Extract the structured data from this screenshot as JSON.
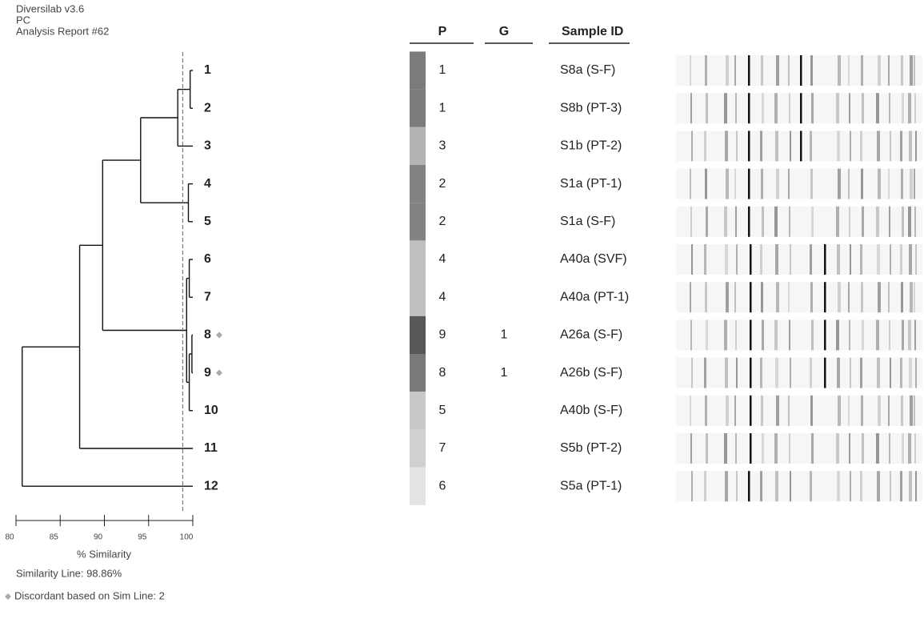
{
  "chart_data": {
    "type": "dendrogram",
    "header": [
      "Diversilab v3.6",
      "PC",
      "Analysis Report #62"
    ],
    "xlabel": "% Similarity",
    "xlim": [
      80,
      100
    ],
    "xticks": [
      80,
      85,
      90,
      95,
      100
    ],
    "similarity_line": 98.86,
    "similarity_line_label": "Similarity Line: 98.86%",
    "discordant_label": "Discordant based on Sim Line: 2",
    "tree": {
      "sim": 80.7,
      "children": [
        {
          "sim": 87.2,
          "children": [
            {
              "sim": 89.8,
              "children": [
                {
                  "sim": 94.1,
                  "children": [
                    {
                      "sim": 98.3,
                      "children": [
                        {
                          "sim": 99.7,
                          "children": [
                            {
                              "label": "1"
                            },
                            {
                              "label": "2"
                            }
                          ]
                        },
                        {
                          "label": "3"
                        }
                      ]
                    },
                    {
                      "sim": 99.5,
                      "children": [
                        {
                          "label": "4"
                        },
                        {
                          "label": "5"
                        }
                      ]
                    }
                  ]
                },
                {
                  "sim": 99.3,
                  "children": [
                    {
                      "sim": 99.6,
                      "children": [
                        {
                          "label": "6"
                        },
                        {
                          "label": "7"
                        }
                      ]
                    },
                    {
                      "sim": 99.6,
                      "children": [
                        {
                          "sim": 99.9,
                          "children": [
                            {
                              "label": "8",
                              "discordant": true
                            },
                            {
                              "label": "9",
                              "discordant": true
                            }
                          ]
                        },
                        {
                          "label": "10"
                        }
                      ]
                    }
                  ]
                }
              ]
            },
            {
              "label": "11"
            }
          ]
        },
        {
          "label": "12"
        }
      ]
    },
    "table": {
      "columns": [
        "P",
        "G",
        "Sample ID"
      ],
      "rows": [
        {
          "P": "1",
          "G": null,
          "id": "S8a (S-F)",
          "color": "#7b7b7b"
        },
        {
          "P": "1",
          "G": null,
          "id": "S8b (PT-3)",
          "color": "#7b7b7b"
        },
        {
          "P": "3",
          "G": null,
          "id": "S1b (PT-2)",
          "color": "#b4b4b4"
        },
        {
          "P": "2",
          "G": null,
          "id": "S1a (PT-1)",
          "color": "#828282"
        },
        {
          "P": "2",
          "G": null,
          "id": "S1a (S-F)",
          "color": "#828282"
        },
        {
          "P": "4",
          "G": null,
          "id": "A40a (SVF)",
          "color": "#c0c0c0"
        },
        {
          "P": "4",
          "G": null,
          "id": "A40a (PT-1)",
          "color": "#c0c0c0"
        },
        {
          "P": "9",
          "G": "1",
          "id": "A26a (S-F)",
          "color": "#585858"
        },
        {
          "P": "8",
          "G": "1",
          "id": "A26b (S-F)",
          "color": "#7a7a7a"
        },
        {
          "P": "5",
          "G": null,
          "id": "A40b (S-F)",
          "color": "#c8c8c8"
        },
        {
          "P": "7",
          "G": null,
          "id": "S5b (PT-2)",
          "color": "#d0d0d0"
        },
        {
          "P": "6",
          "G": null,
          "id": "S5a (PT-1)",
          "color": "#e4e4e4"
        }
      ]
    }
  }
}
